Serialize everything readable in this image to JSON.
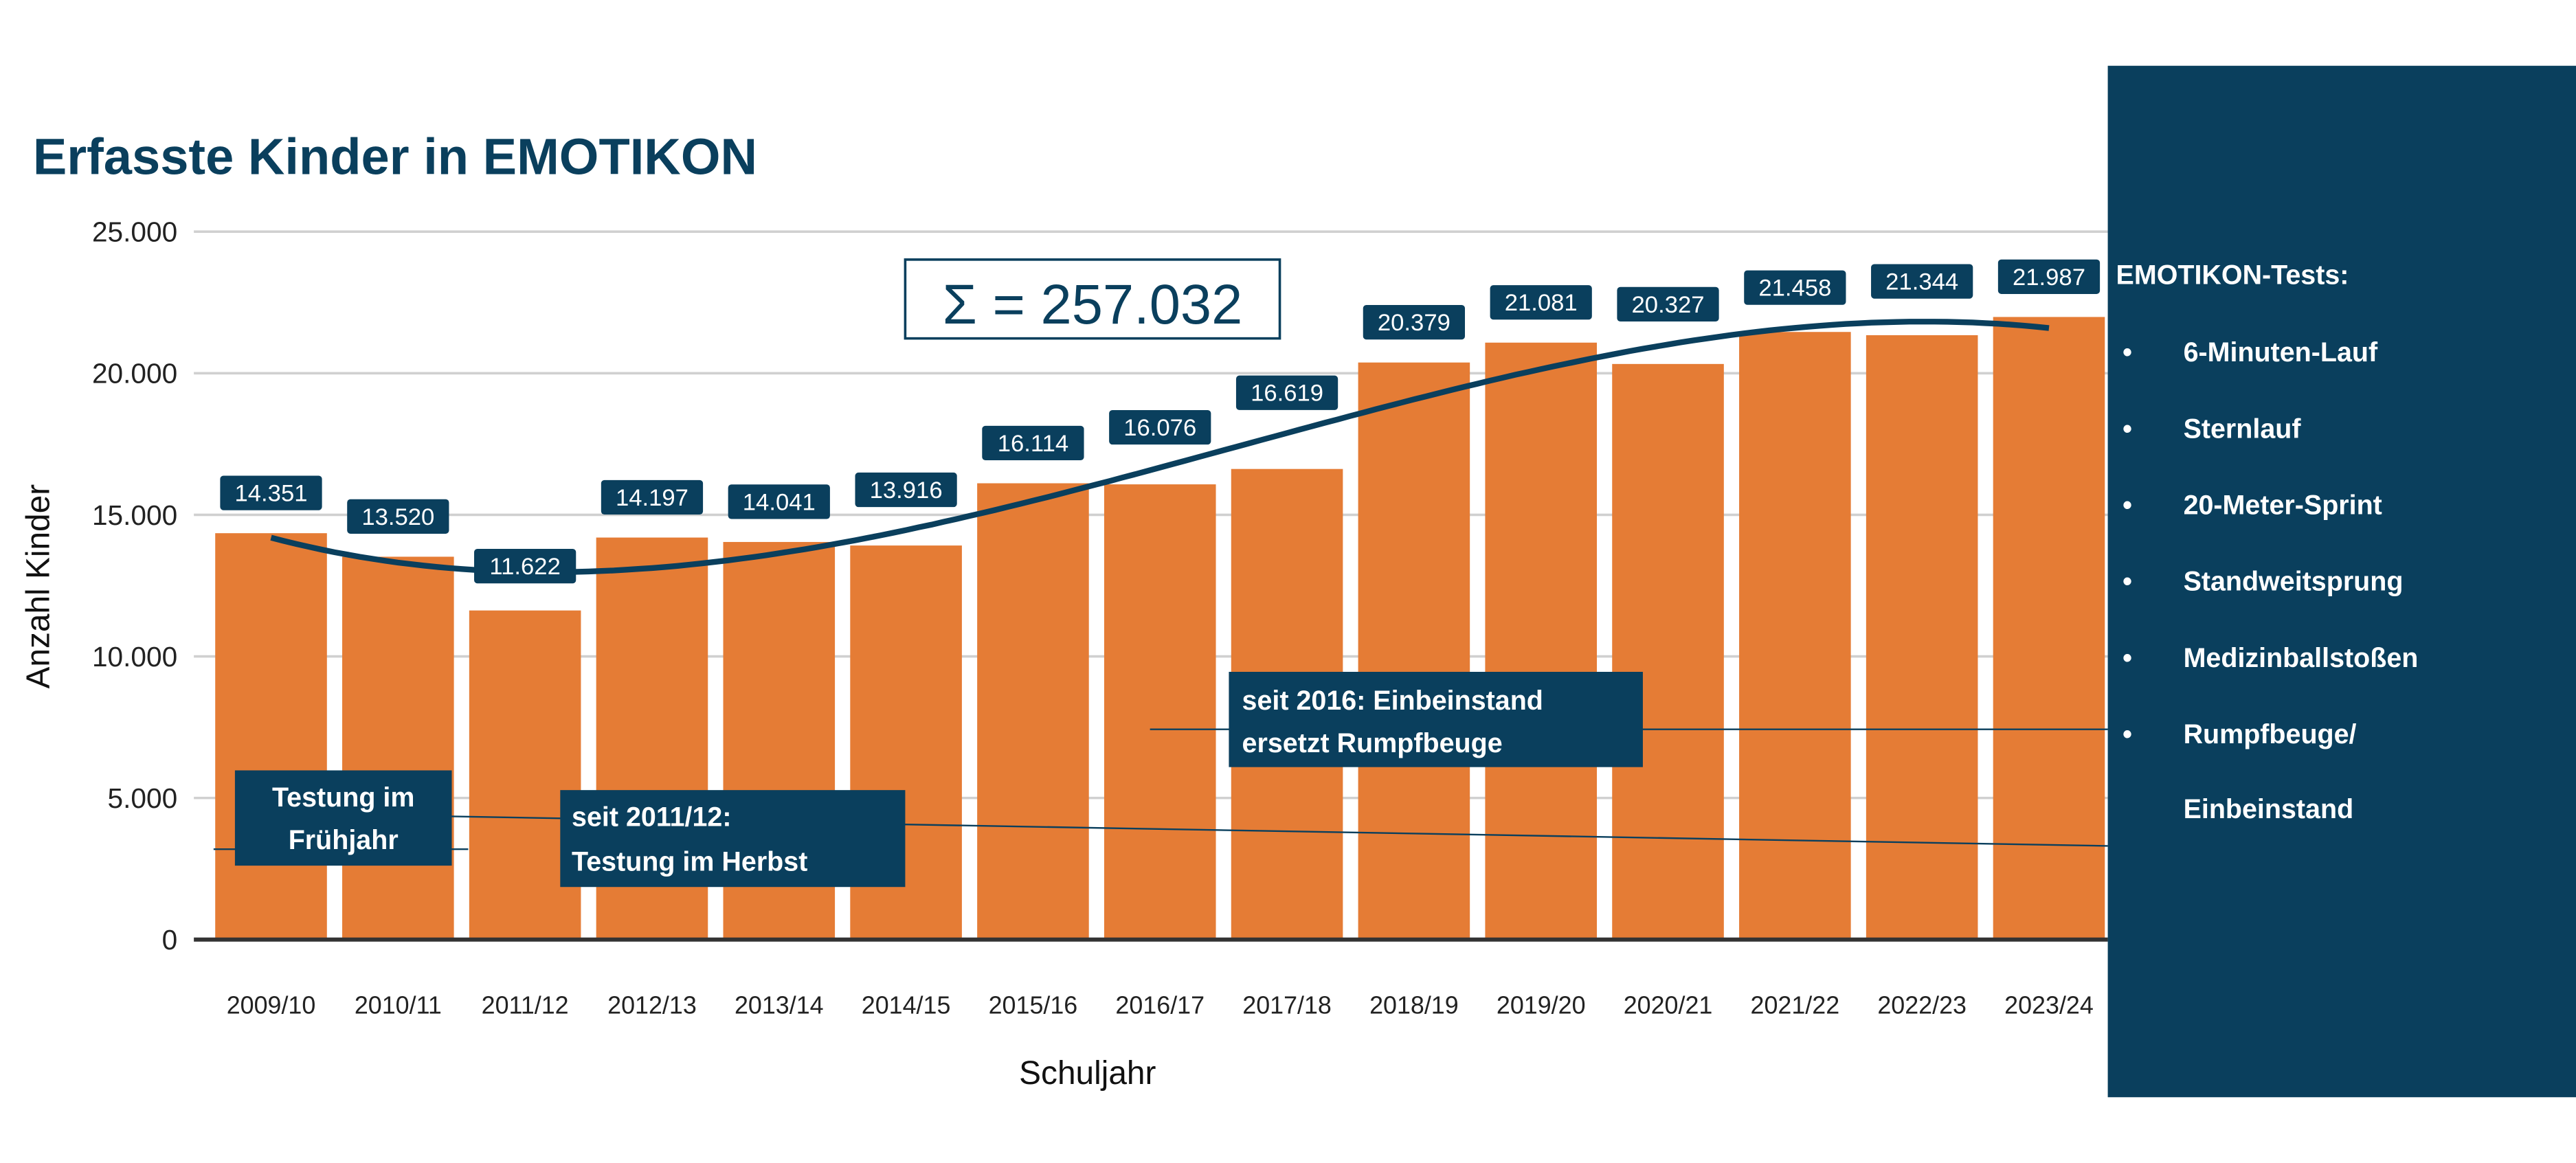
{
  "chart_data": {
    "type": "bar",
    "title": "Erfasste Kinder in EMOTIKON",
    "xlabel": "Schuljahr",
    "ylabel": "Anzahl Kinder",
    "ylim": [
      0,
      25000
    ],
    "yticks": [
      0,
      5000,
      10000,
      15000,
      20000,
      25000
    ],
    "ytick_labels": [
      "0",
      "5.000",
      "10.000",
      "15.000",
      "20.000",
      "25.000"
    ],
    "grid": true,
    "categories": [
      "2009/10",
      "2010/11",
      "2011/12",
      "2012/13",
      "2013/14",
      "2014/15",
      "2015/16",
      "2016/17",
      "2017/18",
      "2018/19",
      "2019/20",
      "2020/21",
      "2021/22",
      "2022/23",
      "2023/24"
    ],
    "values": [
      14351,
      13520,
      11622,
      14197,
      14041,
      13916,
      16114,
      16076,
      16619,
      20379,
      21081,
      20327,
      21458,
      21344,
      21987
    ],
    "value_labels": [
      "14.351",
      "13.520",
      "11.622",
      "14.197",
      "14.041",
      "13.916",
      "16.114",
      "16.076",
      "16.619",
      "20.379",
      "21.081",
      "20.327",
      "21.458",
      "21.344",
      "21.987"
    ],
    "trendline": "polynomial",
    "sum_label": "Σ = 257.032",
    "annotations": [
      {
        "lines": [
          "Testung im",
          "Frühjahr"
        ]
      },
      {
        "lines": [
          "seit 2011/12:",
          "Testung im Herbst"
        ]
      },
      {
        "lines": [
          "seit 2016: Einbeinstand",
          "ersetzt Rumpfbeuge"
        ]
      }
    ],
    "colors": {
      "bar": "#e57c35",
      "navy": "#0a3f5d",
      "grid": "#d0d0d0"
    }
  },
  "panel": {
    "title": "EMOTIKON-Tests:",
    "items": [
      "6-Minuten-Lauf",
      "Sternlauf",
      "20-Meter-Sprint",
      "Standweitsprung",
      "Medizinballstoßen",
      "Rumpfbeuge/"
    ],
    "continuation": "Einbeinstand",
    "bullet": "•"
  }
}
